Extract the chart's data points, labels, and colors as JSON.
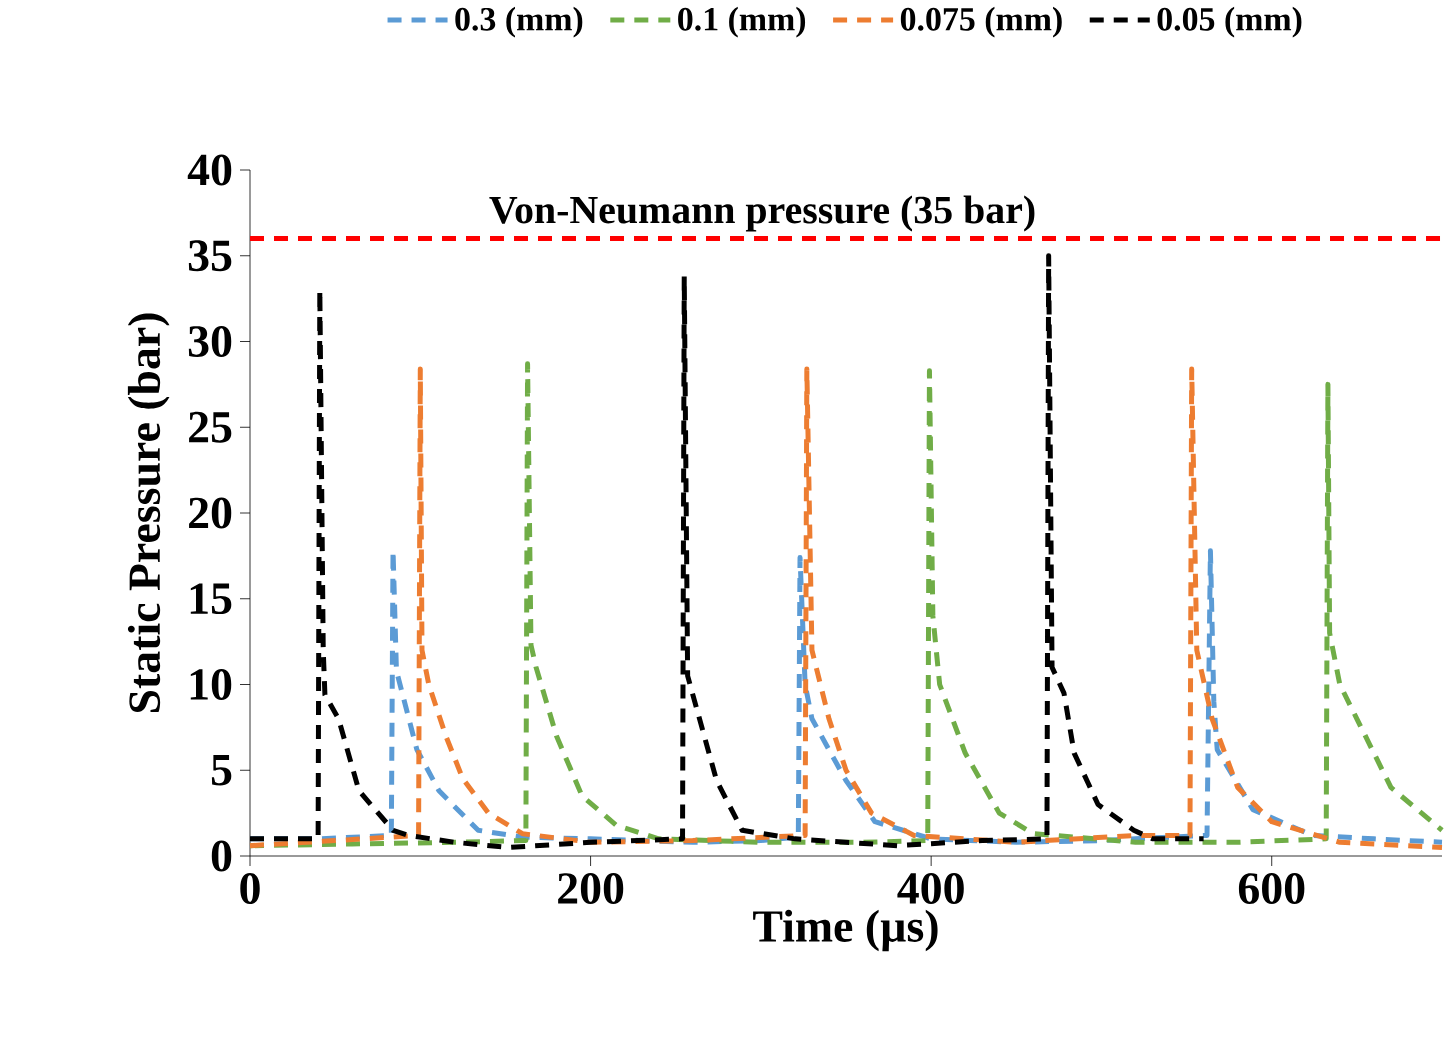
{
  "chart_data": {
    "type": "line",
    "xlabel": "Time (µs)",
    "ylabel": "Static Pressure (bar)",
    "xlim": [
      0,
      700
    ],
    "ylim": [
      0,
      40
    ],
    "xticks": [
      0,
      200,
      400,
      600
    ],
    "yticks": [
      0,
      5,
      10,
      15,
      20,
      25,
      30,
      35,
      40
    ],
    "legend": "top",
    "line_style": "dashed",
    "ref_lines": [
      {
        "axis": "y",
        "value": 36,
        "label": "Von-Neumann pressure (35 bar)",
        "color": "#ff0000",
        "line_style": "dashed"
      }
    ],
    "series": [
      {
        "name": "0.3 (mm)",
        "color": "#5b9bd5",
        "x": [
          0,
          40,
          83,
          84,
          86,
          98,
          111,
          134,
          160,
          200,
          260,
          300,
          322,
          323,
          326,
          330,
          350,
          367,
          400,
          450,
          500,
          540,
          562,
          564,
          566,
          568,
          589,
          624,
          660,
          700
        ],
        "values": [
          1,
          1,
          1.2,
          17.8,
          10.8,
          6.2,
          3.8,
          1.5,
          1.1,
          1,
          0.8,
          0.9,
          1.1,
          17.4,
          10,
          8,
          4.4,
          2,
          1,
          0.8,
          0.9,
          1.1,
          1.2,
          17.8,
          9,
          6.2,
          2.7,
          1.2,
          1,
          0.8
        ]
      },
      {
        "name": "0.1 (mm)",
        "color": "#70ad47",
        "x": [
          0,
          60,
          120,
          162,
          163,
          165,
          168,
          180,
          195,
          215,
          240,
          300,
          360,
          398,
          399,
          401,
          405,
          420,
          440,
          460,
          520,
          580,
          632,
          633,
          634,
          640,
          650,
          670,
          700
        ],
        "values": [
          0.6,
          0.7,
          0.8,
          0.9,
          28.7,
          12.3,
          11,
          7,
          3.5,
          1.8,
          1,
          0.8,
          0.8,
          0.9,
          28.3,
          14,
          10,
          6,
          2.5,
          1.3,
          0.8,
          0.8,
          1,
          27.5,
          13,
          10,
          8,
          4,
          1.5
        ]
      },
      {
        "name": "0.075 (mm)",
        "color": "#ed7d31",
        "x": [
          0,
          50,
          99,
          100,
          101,
          105,
          115,
          125,
          140,
          160,
          200,
          260,
          326,
          327,
          330,
          340,
          350,
          365,
          390,
          450,
          520,
          552,
          553,
          556,
          565,
          580,
          600,
          640,
          700
        ],
        "values": [
          0.6,
          0.9,
          1.2,
          28.4,
          12,
          10,
          7,
          4.5,
          2.5,
          1.3,
          0.8,
          0.9,
          1.2,
          28.4,
          12,
          8,
          5,
          2.5,
          1.2,
          0.8,
          1.2,
          1.2,
          28.4,
          12,
          8,
          4,
          2,
          0.8,
          0.5
        ]
      },
      {
        "name": "0.05 (mm)",
        "color": "#000000",
        "x": [
          0,
          40,
          41,
          43,
          44,
          52,
          64,
          84,
          93,
          120,
          152,
          200,
          254,
          255,
          257,
          274,
          289,
          320,
          380,
          430,
          468,
          469,
          471,
          478,
          484,
          498,
          519,
          530,
          560
        ],
        "values": [
          1,
          1,
          33,
          12,
          9.4,
          8,
          3.8,
          1.5,
          1.2,
          0.8,
          0.5,
          0.8,
          1,
          33.8,
          10.5,
          4.4,
          1.5,
          1,
          0.6,
          0.9,
          1,
          35,
          11,
          9.5,
          6,
          3,
          1.5,
          1,
          1
        ]
      }
    ]
  }
}
